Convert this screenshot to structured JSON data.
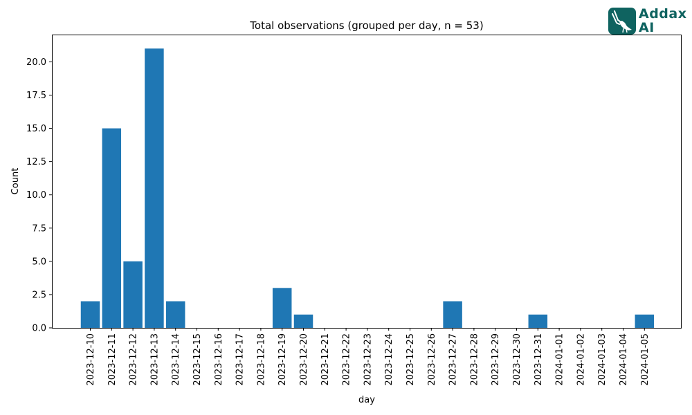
{
  "chart_data": {
    "type": "bar",
    "title": "Total observations (grouped per day, n = 53)",
    "xlabel": "day",
    "ylabel": "Count",
    "ylim": [
      0,
      22.05
    ],
    "yticks": [
      "0.0",
      "2.5",
      "5.0",
      "7.5",
      "10.0",
      "12.5",
      "15.0",
      "17.5",
      "20.0"
    ],
    "categories": [
      "2023-12-10",
      "2023-12-11",
      "2023-12-12",
      "2023-12-13",
      "2023-12-14",
      "2023-12-15",
      "2023-12-16",
      "2023-12-17",
      "2023-12-18",
      "2023-12-19",
      "2023-12-20",
      "2023-12-21",
      "2023-12-22",
      "2023-12-23",
      "2023-12-24",
      "2023-12-25",
      "2023-12-26",
      "2023-12-27",
      "2023-12-28",
      "2023-12-29",
      "2023-12-30",
      "2023-12-31",
      "2024-01-01",
      "2024-01-02",
      "2024-01-03",
      "2024-01-04",
      "2024-01-05"
    ],
    "values": [
      2,
      15,
      5,
      21,
      2,
      0,
      0,
      0,
      0,
      3,
      1,
      0,
      0,
      0,
      0,
      0,
      0,
      2,
      0,
      0,
      0,
      1,
      0,
      0,
      0,
      0,
      1
    ],
    "bar_color": "#1f77b4",
    "grid": false,
    "legend": "none"
  },
  "logo": {
    "line1": "Addax",
    "line2": "AI",
    "color": "#0f6360",
    "icon": "addax-antelope-icon"
  }
}
